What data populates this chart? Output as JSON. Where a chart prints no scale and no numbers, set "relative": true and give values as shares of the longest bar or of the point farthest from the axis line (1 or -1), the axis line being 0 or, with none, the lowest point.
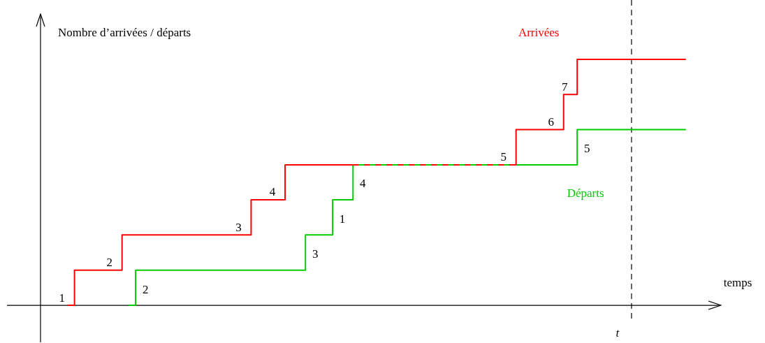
{
  "chart_data": {
    "type": "step",
    "relative": true,
    "xlabel": "temps",
    "ylabel": "Nombre d’arrivées / départs",
    "marker": "none",
    "categories": [
      null,
      null,
      null,
      null,
      null,
      null,
      null,
      null,
      null,
      null,
      null,
      null,
      null,
      null,
      null,
      null,
      null,
      null,
      null,
      null,
      null,
      null,
      null,
      null,
      null,
      null,
      null,
      null,
      null,
      null,
      null,
      null,
      null,
      null,
      null,
      null,
      null,
      null,
      null,
      null,
      null,
      null,
      null,
      null,
      null,
      null,
      null,
      null,
      null,
      null,
      null,
      null,
      null,
      null,
      null,
      null,
      null,
      null,
      null,
      null,
      null,
      null,
      null,
      null,
      null,
      null,
      null,
      null,
      null,
      null,
      null,
      null,
      null,
      null,
      null,
      null,
      null,
      null,
      null,
      null,
      null,
      null,
      null,
      null,
      null,
      null,
      null,
      null,
      null,
      null,
      null,
      null,
      null,
      null,
      null,
      null
    ],
    "series": [
      {
        "name": "Arrivées",
        "color": "#ff0000",
        "values": [
          null,
          null,
          null,
          null,
          0,
          0.143,
          0.143,
          0.143,
          0.143,
          0.143,
          0.143,
          0.143,
          0.286,
          0.286,
          0.286,
          0.286,
          0.286,
          0.286,
          0.286,
          0.286,
          0.286,
          0.286,
          0.286,
          0.286,
          0.286,
          0.286,
          0.286,
          0.286,
          0.286,
          0.286,
          0.286,
          0.429,
          0.429,
          0.429,
          0.429,
          0.429,
          0.571,
          0.571,
          0.571,
          0.571,
          0.571,
          0.571,
          0.571,
          0.571,
          0.571,
          0.571,
          0.571,
          0.571,
          0.571,
          0.571,
          0.571,
          0.571,
          0.571,
          0.571,
          0.571,
          0.571,
          0.571,
          0.571,
          0.571,
          0.571,
          0.571,
          0.571,
          0.571,
          0.571,
          0.571,
          0.571,
          0.571,
          0.571,
          0.571,
          0.571,
          0.714,
          0.714,
          0.714,
          0.714,
          0.714,
          0.714,
          0.714,
          0.857,
          0.857,
          1,
          1,
          1,
          1,
          1,
          1,
          1,
          1,
          1,
          1,
          1,
          1,
          1,
          1,
          1,
          1,
          1
        ]
      },
      {
        "name": "Départs",
        "color": "#00cc00",
        "values": [
          null,
          null,
          null,
          null,
          null,
          null,
          null,
          null,
          null,
          null,
          null,
          null,
          null,
          0,
          0.143,
          0.143,
          0.143,
          0.143,
          0.143,
          0.143,
          0.143,
          0.143,
          0.143,
          0.143,
          0.143,
          0.143,
          0.143,
          0.143,
          0.143,
          0.143,
          0.143,
          0.143,
          0.143,
          0.143,
          0.143,
          0.143,
          0.143,
          0.143,
          0.143,
          0.286,
          0.286,
          0.286,
          0.286,
          0.429,
          0.429,
          0.429,
          0.571,
          0.571,
          0.571,
          0.571,
          0.571,
          0.571,
          0.571,
          0.571,
          0.571,
          0.571,
          0.571,
          0.571,
          0.571,
          0.571,
          0.571,
          0.571,
          0.571,
          0.571,
          0.571,
          0.571,
          0.571,
          0.571,
          0.571,
          0.571,
          0.571,
          0.571,
          0.571,
          0.571,
          0.571,
          0.571,
          0.571,
          0.571,
          0.571,
          0.714,
          0.714,
          0.714,
          0.714,
          0.714,
          0.714,
          0.714,
          0.714,
          0.714,
          0.714,
          0.714,
          0.714,
          0.714,
          0.714,
          0.714,
          0.714,
          0.714
        ]
      }
    ],
    "annotations": [
      "1",
      "2",
      "3",
      "4",
      "5",
      "6",
      "7",
      "2",
      "3",
      "1",
      "4",
      "5",
      "t"
    ]
  }
}
